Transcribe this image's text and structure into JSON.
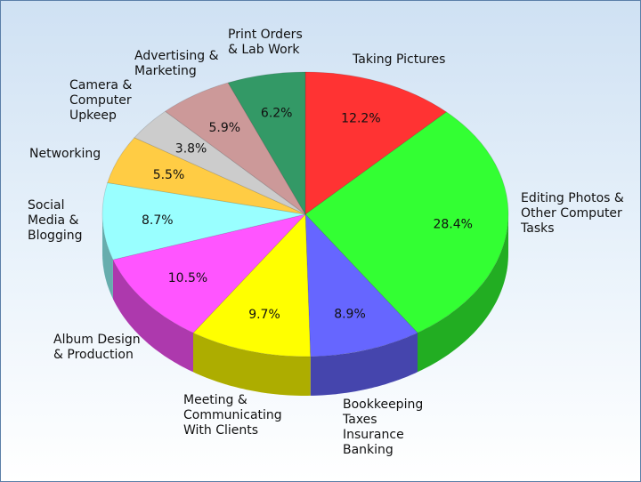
{
  "chart_data": {
    "type": "pie",
    "title": "",
    "style": "3d-tilted",
    "start_angle": "12 o'clock",
    "direction": "clockwise",
    "slices": [
      {
        "label": "Taking Pictures",
        "value": 12.2,
        "display": "12.2%",
        "color": "#ff3333"
      },
      {
        "label": "Editing Photos &\nOther Computer\nTasks",
        "value": 28.4,
        "display": "28.4%",
        "color": "#33ff33"
      },
      {
        "label": "Bookkeeping\nTaxes\nInsurance\nBanking",
        "value": 8.9,
        "display": "8.9%",
        "color": "#6666ff"
      },
      {
        "label": "Meeting &\nCommunicating\nWith Clients",
        "value": 9.7,
        "display": "9.7%",
        "color": "#ffff00"
      },
      {
        "label": "Album Design\n& Production",
        "value": 10.5,
        "display": "10.5%",
        "color": "#ff55ff"
      },
      {
        "label": "Social\nMedia &\nBlogging",
        "value": 8.7,
        "display": "8.7%",
        "color": "#99ffff"
      },
      {
        "label": "Networking",
        "value": 5.5,
        "display": "5.5%",
        "color": "#ffcc44"
      },
      {
        "label": "Camera &\nComputer\nUpkeep",
        "value": 3.8,
        "display": "3.8%",
        "color": "#cccccc"
      },
      {
        "label": "Advertising &\nMarketing",
        "value": 5.9,
        "display": "5.9%",
        "color": "#cc9999"
      },
      {
        "label": "Print Orders\n& Lab Work",
        "value": 6.2,
        "display": "6.2%",
        "color": "#339966"
      }
    ]
  }
}
